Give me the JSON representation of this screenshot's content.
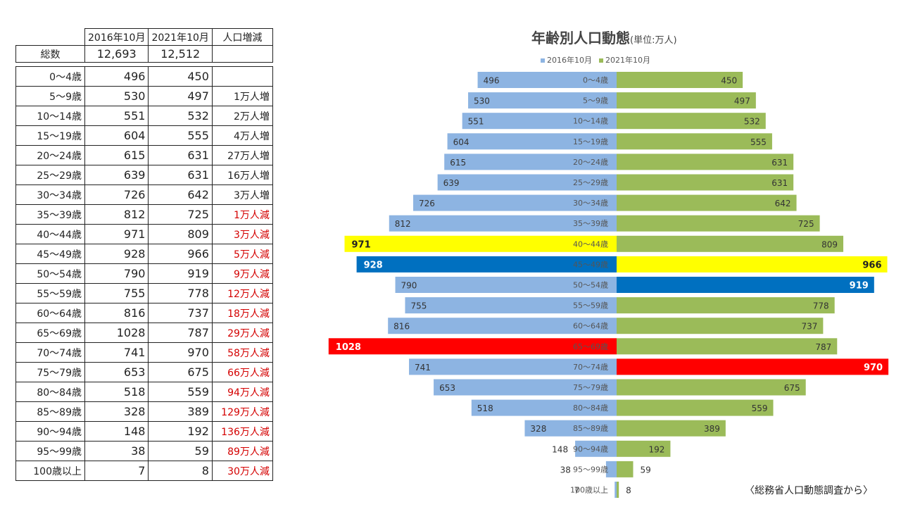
{
  "table": {
    "headers": [
      "",
      "2016年10月",
      "2021年10月",
      "人口増減"
    ],
    "total": {
      "label": "総数",
      "y2016": "12,693",
      "y2021": "12,512",
      "change": ""
    },
    "rows": [
      {
        "label": "0～4歳",
        "y2016": "496",
        "y2021": "450",
        "change": "",
        "dir": ""
      },
      {
        "label": "5～9歳",
        "y2016": "530",
        "y2021": "497",
        "change": "1万人増",
        "dir": "inc"
      },
      {
        "label": "10～14歳",
        "y2016": "551",
        "y2021": "532",
        "change": "2万人増",
        "dir": "inc"
      },
      {
        "label": "15～19歳",
        "y2016": "604",
        "y2021": "555",
        "change": "4万人増",
        "dir": "inc"
      },
      {
        "label": "20～24歳",
        "y2016": "615",
        "y2021": "631",
        "change": "27万人増",
        "dir": "inc"
      },
      {
        "label": "25～29歳",
        "y2016": "639",
        "y2021": "631",
        "change": "16万人増",
        "dir": "inc"
      },
      {
        "label": "30～34歳",
        "y2016": "726",
        "y2021": "642",
        "change": "3万人増",
        "dir": "inc"
      },
      {
        "label": "35～39歳",
        "y2016": "812",
        "y2021": "725",
        "change": "1万人減",
        "dir": "dec"
      },
      {
        "label": "40～44歳",
        "y2016": "971",
        "y2021": "809",
        "change": "3万人減",
        "dir": "dec"
      },
      {
        "label": "45～49歳",
        "y2016": "928",
        "y2021": "966",
        "change": "5万人減",
        "dir": "dec"
      },
      {
        "label": "50～54歳",
        "y2016": "790",
        "y2021": "919",
        "change": "9万人減",
        "dir": "dec"
      },
      {
        "label": "55～59歳",
        "y2016": "755",
        "y2021": "778",
        "change": "12万人減",
        "dir": "dec"
      },
      {
        "label": "60～64歳",
        "y2016": "816",
        "y2021": "737",
        "change": "18万人減",
        "dir": "dec"
      },
      {
        "label": "65～69歳",
        "y2016": "1028",
        "y2021": "787",
        "change": "29万人減",
        "dir": "dec"
      },
      {
        "label": "70～74歳",
        "y2016": "741",
        "y2021": "970",
        "change": "58万人減",
        "dir": "dec"
      },
      {
        "label": "75～79歳",
        "y2016": "653",
        "y2021": "675",
        "change": "66万人減",
        "dir": "dec"
      },
      {
        "label": "80～84歳",
        "y2016": "518",
        "y2021": "559",
        "change": "94万人減",
        "dir": "dec"
      },
      {
        "label": "85～89歳",
        "y2016": "328",
        "y2021": "389",
        "change": "129万人減",
        "dir": "dec"
      },
      {
        "label": "90～94歳",
        "y2016": "148",
        "y2021": "192",
        "change": "136万人減",
        "dir": "dec"
      },
      {
        "label": "95～99歳",
        "y2016": "38",
        "y2021": "59",
        "change": "89万人減",
        "dir": "dec"
      },
      {
        "label": "100歳以上",
        "y2016": "7",
        "y2021": "8",
        "change": "30万人減",
        "dir": "dec"
      }
    ]
  },
  "chart_data": {
    "type": "bar",
    "orientation": "horizontal-butterfly",
    "title": "年齢別人口動態",
    "title_unit": "(単位:万人)",
    "legend": [
      "2016年10月",
      "2021年10月"
    ],
    "categories": [
      "0～4歳",
      "5～9歳",
      "10～14歳",
      "15～19歳",
      "20～24歳",
      "25～29歳",
      "30～34歳",
      "35～39歳",
      "40～44歳",
      "45～49歳",
      "50～54歳",
      "55～59歳",
      "60～64歳",
      "65～69歳",
      "70～74歳",
      "75～79歳",
      "80～84歳",
      "85～89歳",
      "90～94歳",
      "95～99歳",
      "100歳以上"
    ],
    "series": [
      {
        "name": "2016年10月",
        "side": "left",
        "color": "#8db4e2",
        "values": [
          496,
          530,
          551,
          604,
          615,
          639,
          726,
          812,
          971,
          928,
          790,
          755,
          816,
          1028,
          741,
          653,
          518,
          328,
          148,
          38,
          7
        ]
      },
      {
        "name": "2021年10月",
        "side": "right",
        "color": "#9bbb59",
        "values": [
          450,
          497,
          532,
          555,
          631,
          631,
          642,
          725,
          809,
          966,
          919,
          778,
          737,
          787,
          970,
          675,
          559,
          389,
          192,
          59,
          8
        ]
      }
    ],
    "highlights": [
      {
        "series": 0,
        "index": 8,
        "color": "#ffff00",
        "label_color": "#222222"
      },
      {
        "series": 0,
        "index": 9,
        "color": "#0070c0",
        "label_color": "#ffffff"
      },
      {
        "series": 0,
        "index": 13,
        "color": "#ff0000",
        "label_color": "#ffffff"
      },
      {
        "series": 1,
        "index": 9,
        "color": "#ffff00",
        "label_color": "#222222"
      },
      {
        "series": 1,
        "index": 10,
        "color": "#0070c0",
        "label_color": "#ffffff"
      },
      {
        "series": 1,
        "index": 14,
        "color": "#ff0000",
        "label_color": "#ffffff"
      }
    ],
    "xlim": [
      0,
      1030
    ]
  },
  "source": "〈総務省人口動態調査から〉",
  "colors": {
    "decrease_text": "#d40000",
    "axis_label": "#555555"
  }
}
